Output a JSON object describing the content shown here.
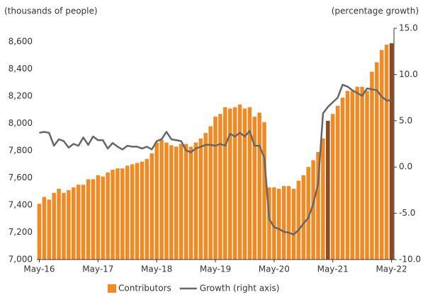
{
  "chart_data": {
    "type": "bar",
    "y_label": "(thousands of people)",
    "y2_label": "(percentage growth)",
    "categories": [
      "May-16",
      null,
      null,
      null,
      null,
      null,
      null,
      null,
      null,
      null,
      null,
      null,
      "May-17",
      null,
      null,
      null,
      null,
      null,
      null,
      null,
      null,
      null,
      null,
      null,
      "May-18",
      null,
      null,
      null,
      null,
      null,
      null,
      null,
      null,
      null,
      null,
      null,
      "May-19",
      null,
      null,
      null,
      null,
      null,
      null,
      null,
      null,
      null,
      null,
      null,
      "May-20",
      null,
      null,
      null,
      null,
      null,
      null,
      null,
      null,
      null,
      null,
      null,
      "May-21",
      null,
      null,
      null,
      null,
      null,
      null,
      null,
      null,
      null,
      null,
      null,
      "May-22"
    ],
    "series": [
      {
        "name": "Contributors",
        "type": "bar",
        "color": "#f08a24",
        "colors": [
          "#f08a24",
          "#f08a24",
          "#f08a24",
          "#f08a24",
          "#f08a24",
          "#f08a24",
          "#f08a24",
          "#f08a24",
          "#f08a24",
          "#f08a24",
          "#f08a24",
          "#f08a24",
          "#f08a24",
          "#f08a24",
          "#f08a24",
          "#f08a24",
          "#f08a24",
          "#f08a24",
          "#f08a24",
          "#f08a24",
          "#f08a24",
          "#f08a24",
          "#f08a24",
          "#f08a24",
          "#f08a24",
          "#f08a24",
          "#f08a24",
          "#f08a24",
          "#f08a24",
          "#f08a24",
          "#f08a24",
          "#f08a24",
          "#f08a24",
          "#f08a24",
          "#f08a24",
          "#f08a24",
          "#f08a24",
          "#f08a24",
          "#f08a24",
          "#f08a24",
          "#f08a24",
          "#f08a24",
          "#f08a24",
          "#f08a24",
          "#f08a24",
          "#f08a24",
          "#f08a24",
          "#f08a24",
          "#f08a24",
          "#f08a24",
          "#f08a24",
          "#f08a24",
          "#f08a24",
          "#f08a24",
          "#f08a24",
          "#f08a24",
          "#f08a24",
          "#f08a24",
          "#f08a24",
          "#8c4a1e",
          "#f08a24",
          "#f08a24",
          "#f08a24",
          "#f08a24",
          "#f08a24",
          "#f08a24",
          "#f08a24",
          "#f08a24",
          "#f08a24",
          "#f08a24",
          "#f08a24",
          "#f08a24",
          "#8c4a1e"
        ],
        "values": [
          7410,
          7460,
          7440,
          7490,
          7520,
          7490,
          7510,
          7530,
          7550,
          7550,
          7590,
          7590,
          7620,
          7610,
          7640,
          7660,
          7670,
          7670,
          7690,
          7700,
          7710,
          7720,
          7740,
          7780,
          7860,
          7880,
          7860,
          7840,
          7830,
          7850,
          7850,
          7830,
          7860,
          7890,
          7930,
          7980,
          8050,
          8070,
          8120,
          8110,
          8120,
          8140,
          8110,
          8120,
          8050,
          8080,
          8010,
          7530,
          7530,
          7520,
          7540,
          7540,
          7520,
          7580,
          7620,
          7680,
          7730,
          7790,
          7890,
          8020,
          8070,
          8130,
          8190,
          8240,
          8240,
          8270,
          8270,
          8240,
          8380,
          8450,
          8540,
          8580,
          8590
        ]
      },
      {
        "name": "Growth (right axis)",
        "type": "line",
        "color": "#666666",
        "axis": "y2",
        "values": [
          3.7,
          3.8,
          3.7,
          2.3,
          3.0,
          2.8,
          2.1,
          2.5,
          2.3,
          3.2,
          2.4,
          3.3,
          2.9,
          2.9,
          2.0,
          2.6,
          2.2,
          1.9,
          2.3,
          2.2,
          2.2,
          2.0,
          2.2,
          1.9,
          2.8,
          3.0,
          3.8,
          3.0,
          2.9,
          2.8,
          1.8,
          1.6,
          2.0,
          2.2,
          2.4,
          2.4,
          2.3,
          2.5,
          2.3,
          3.6,
          3.3,
          3.7,
          3.3,
          3.9,
          2.3,
          2.3,
          1.0,
          -5.6,
          -6.5,
          -6.7,
          -7.0,
          -7.1,
          -7.3,
          -6.8,
          -6.1,
          -5.5,
          -4.0,
          -1.8,
          5.8,
          6.5,
          7.0,
          7.5,
          8.9,
          8.7,
          8.3,
          8.0,
          7.7,
          8.5,
          8.4,
          8.3,
          7.6,
          7.2,
          7.2
        ]
      }
    ],
    "ylim": [
      7000,
      8700
    ],
    "yticks": [
      {
        "value": 7000,
        "label": "7,000"
      },
      {
        "value": 7200,
        "label": "7,200"
      },
      {
        "value": 7400,
        "label": "7,400"
      },
      {
        "value": 7600,
        "label": "7,600"
      },
      {
        "value": 7800,
        "label": "7,800"
      },
      {
        "value": 8000,
        "label": "8,000"
      },
      {
        "value": 8200,
        "label": "8,200"
      },
      {
        "value": 8400,
        "label": "8,400"
      },
      {
        "value": 8600,
        "label": "8,600"
      }
    ],
    "y2lim": [
      -10,
      15
    ],
    "y2ticks": [
      {
        "value": -10,
        "label": "-10.0"
      },
      {
        "value": -5,
        "label": "-5.0"
      },
      {
        "value": 0,
        "label": "0.0"
      },
      {
        "value": 5,
        "label": "5.0"
      },
      {
        "value": 10,
        "label": "10.0"
      },
      {
        "value": 15,
        "label": "15.0"
      }
    ],
    "legend": "bottom"
  }
}
